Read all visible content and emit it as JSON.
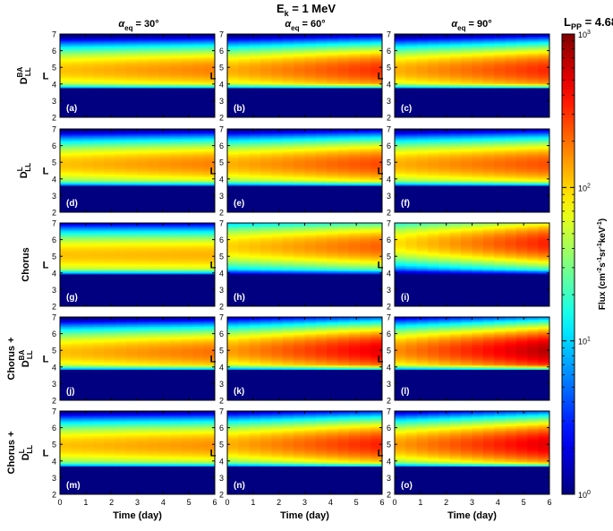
{
  "chart_data": {
    "type": "heatmap",
    "title": "E",
    "title_sub": "k",
    "title_rest": " = 1 MeV",
    "xlabel": "Time (day)",
    "ylabel": "L",
    "xlim": [
      0,
      6
    ],
    "ylim": [
      2,
      7
    ],
    "xticks": [
      "0",
      "1",
      "2",
      "3",
      "4",
      "5",
      "6"
    ],
    "yticks": [
      "2",
      "3",
      "4",
      "5",
      "6",
      "7"
    ],
    "column_titles": [
      {
        "sym": "α",
        "sub": "eq",
        "rest": " = 30°",
        "pitch_angle": 30
      },
      {
        "sym": "α",
        "sub": "eq",
        "rest": " = 60°",
        "pitch_angle": 60
      },
      {
        "sym": "α",
        "sub": "eq",
        "rest": " = 90°",
        "pitch_angle": 90
      }
    ],
    "row_labels": [
      {
        "line1": "",
        "main": "D",
        "sup": "BA",
        "sub": "LL"
      },
      {
        "line1": "",
        "main": "D",
        "sup": "L",
        "sub": "LL"
      },
      {
        "line1": "Chorus",
        "main": "",
        "sup": "",
        "sub": ""
      },
      {
        "line1": "Chorus +",
        "main": "D",
        "sup": "BA",
        "sub": "LL"
      },
      {
        "line1": "Chorus +",
        "main": "D",
        "sup": "L",
        "sub": "LL"
      }
    ],
    "panel_labels": [
      "(a)",
      "(b)",
      "(c)",
      "(d)",
      "(e)",
      "(f)",
      "(g)",
      "(h)",
      "(i)",
      "(j)",
      "(k)",
      "(l)",
      "(m)",
      "(n)",
      "(o)"
    ],
    "plasmapause": {
      "label": "L",
      "sub": "PP",
      "value_text": " = 4.68",
      "value": 4.68
    },
    "colorbar": {
      "scale": "log",
      "min": 1,
      "max": 1000,
      "ticks": [
        {
          "base": "10",
          "exp": "0",
          "value": 1
        },
        {
          "base": "10",
          "exp": "1",
          "value": 10
        },
        {
          "base": "10",
          "exp": "2",
          "value": 100
        },
        {
          "base": "10",
          "exp": "3",
          "value": 1000
        }
      ],
      "label_parts": [
        "Flux (cm",
        "-2",
        "s",
        "-1",
        "sr",
        "-1",
        "keV",
        "-1",
        ")"
      ],
      "colormap": "jet"
    },
    "panels": [
      {
        "id": "a",
        "peak_L": 4.85,
        "initial_peak_log": 2.05,
        "final_peak_log": 2.25,
        "inner_L": 3.75
      },
      {
        "id": "b",
        "peak_L": 4.85,
        "initial_peak_log": 2.1,
        "final_peak_log": 2.5,
        "inner_L": 3.75
      },
      {
        "id": "c",
        "peak_L": 4.85,
        "initial_peak_log": 2.1,
        "final_peak_log": 2.52,
        "inner_L": 3.75
      },
      {
        "id": "d",
        "peak_L": 4.9,
        "initial_peak_log": 2.05,
        "final_peak_log": 2.25,
        "inner_L": 3.6
      },
      {
        "id": "e",
        "peak_L": 4.9,
        "initial_peak_log": 2.1,
        "final_peak_log": 2.42,
        "inner_L": 3.6
      },
      {
        "id": "f",
        "peak_L": 4.9,
        "initial_peak_log": 2.1,
        "final_peak_log": 2.4,
        "inner_L": 3.6
      },
      {
        "id": "g",
        "peak_L": 5.1,
        "initial_peak_log": 2.05,
        "final_peak_log": 2.1,
        "inner_L": 3.95
      },
      {
        "id": "h",
        "peak_L": 5.6,
        "initial_peak_log": 2.0,
        "final_peak_log": 2.35,
        "inner_L": 3.95
      },
      {
        "id": "i",
        "peak_L": 5.8,
        "initial_peak_log": 1.95,
        "final_peak_log": 2.55,
        "inner_L": 3.95
      },
      {
        "id": "j",
        "peak_L": 4.9,
        "initial_peak_log": 2.05,
        "final_peak_log": 2.3,
        "inner_L": 3.85
      },
      {
        "id": "k",
        "peak_L": 5.0,
        "initial_peak_log": 2.15,
        "final_peak_log": 2.7,
        "inner_L": 3.85
      },
      {
        "id": "l",
        "peak_L": 5.0,
        "initial_peak_log": 2.2,
        "final_peak_log": 2.85,
        "inner_L": 3.85
      },
      {
        "id": "m",
        "peak_L": 4.95,
        "initial_peak_log": 2.05,
        "final_peak_log": 2.2,
        "inner_L": 3.65
      },
      {
        "id": "n",
        "peak_L": 5.0,
        "initial_peak_log": 2.1,
        "final_peak_log": 2.55,
        "inner_L": 3.65
      },
      {
        "id": "o",
        "peak_L": 5.0,
        "initial_peak_log": 2.15,
        "final_peak_log": 2.72,
        "inner_L": 3.65
      }
    ]
  }
}
